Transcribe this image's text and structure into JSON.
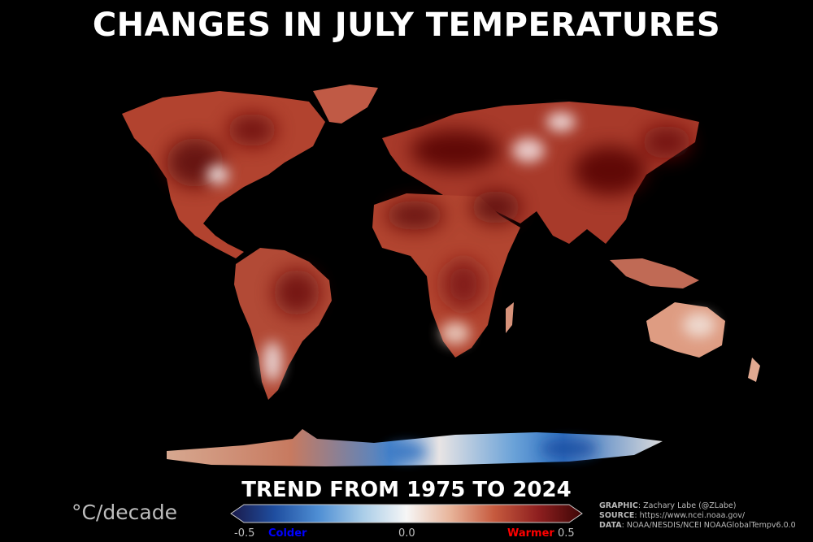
{
  "title": "CHANGES IN JULY TEMPERATURES",
  "subtitle": "TREND FROM 1975 TO 2024",
  "units": "°C/decade",
  "colorbar": {
    "min_label": "-0.5",
    "mid_label": "0.0",
    "max_label": "0.5",
    "cold_label": "Colder",
    "warm_label": "Warmer",
    "cold_color": "#0000ff",
    "warm_color": "#ff0000",
    "stops": [
      "#1a1a4a",
      "#1f4ea0",
      "#4f8fd4",
      "#a9cde8",
      "#f6f6f6",
      "#e8b49a",
      "#c65a3e",
      "#8e1f1f",
      "#3e0606"
    ]
  },
  "credits": {
    "graphic_key": "GRAPHIC",
    "graphic_val": "Zachary Labe (@ZLabe)",
    "source_key": "SOURCE",
    "source_val": "https://www.ncei.noaa.gov/",
    "data_key": "DATA",
    "data_val": "NOAA/NESDIS/NCEI NOAAGlobalTempv6.0.0"
  },
  "colors": {
    "background": "#000000",
    "land_base": "#b2432f",
    "land_dark": "#6e0e0e",
    "land_light": "#f2dfd6",
    "antarctic_cold": "#3a78c2"
  }
}
